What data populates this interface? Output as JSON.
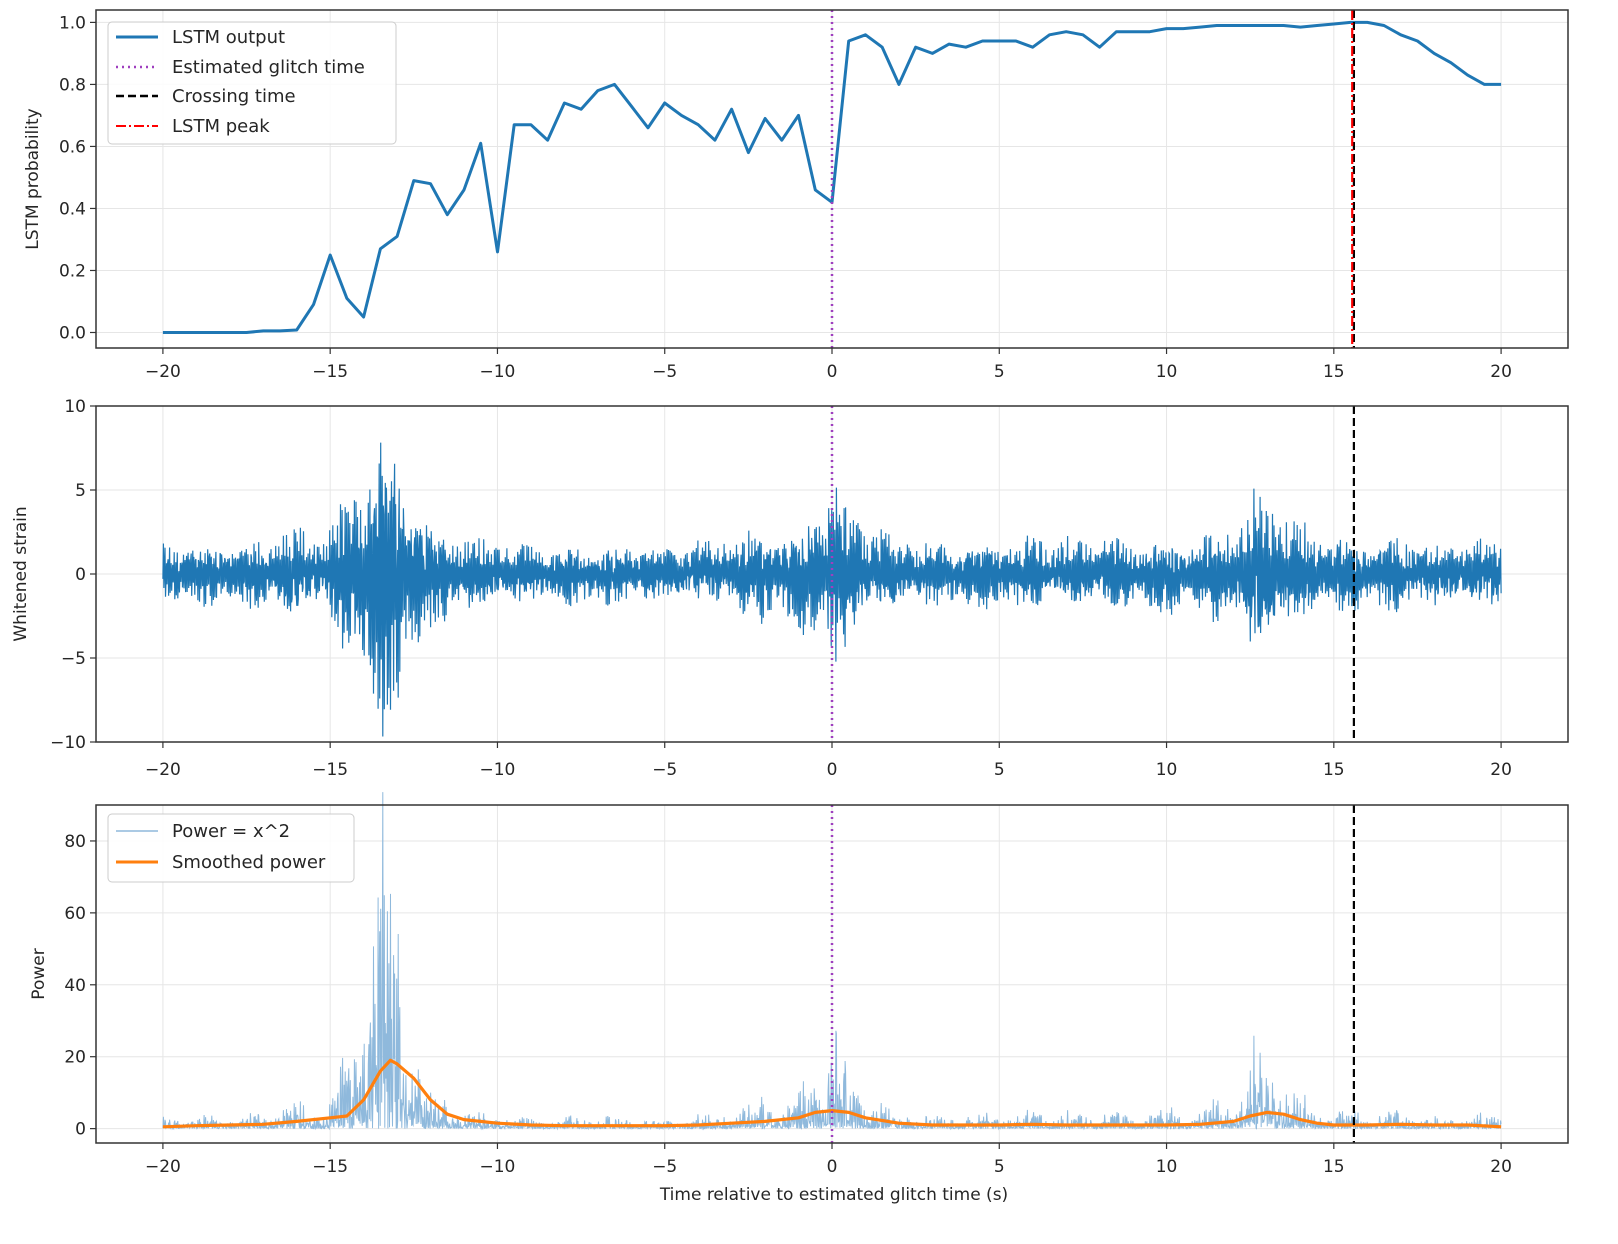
{
  "figure": {
    "xlabel": "Time relative to estimated glitch time (s)",
    "colors": {
      "lstm": "#1f77b4",
      "glitch_line": "#9f3fbf",
      "crossing_line": "#000000",
      "peak_line": "#ff0000",
      "power": "#1f77b4",
      "smoothed": "#ff7f0e",
      "grid": "#e6e6e6"
    },
    "markers": {
      "glitch_time": 0.0,
      "crossing_time": 15.6,
      "lstm_peak_time": 15.55
    }
  },
  "chart_data": [
    {
      "type": "line",
      "name": "lstm-panel",
      "ylabel": "LSTM probability",
      "xlim": [
        -22,
        22
      ],
      "ylim": [
        -0.05,
        1.04
      ],
      "xticks": [
        -20,
        -15,
        -10,
        -5,
        0,
        5,
        10,
        15,
        20
      ],
      "yticks": [
        0.0,
        0.2,
        0.4,
        0.6,
        0.8,
        1.0
      ],
      "xtick_labels": [
        "−20",
        "−15",
        "−10",
        "−5",
        "0",
        "5",
        "10",
        "15",
        "20"
      ],
      "ytick_labels": [
        "0.0",
        "0.2",
        "0.4",
        "0.6",
        "0.8",
        "1.0"
      ],
      "grid": true,
      "legend_position": "upper-left",
      "legend": [
        {
          "label": "LSTM output",
          "style": "solid",
          "color": "#1f77b4"
        },
        {
          "label": "Estimated glitch time",
          "style": "dotted",
          "color": "#9f3fbf"
        },
        {
          "label": "Crossing time",
          "style": "dashed",
          "color": "#000000"
        },
        {
          "label": "LSTM peak",
          "style": "dashdot",
          "color": "#ff0000"
        }
      ],
      "series": [
        {
          "name": "LSTM output",
          "x": [
            -20.0,
            -19.5,
            -19.0,
            -18.5,
            -18.0,
            -17.5,
            -17.0,
            -16.5,
            -16.0,
            -15.5,
            -15.0,
            -14.5,
            -14.0,
            -13.5,
            -13.0,
            -12.5,
            -12.0,
            -11.5,
            -11.0,
            -10.5,
            -10.0,
            -9.5,
            -9.0,
            -8.5,
            -8.0,
            -7.5,
            -7.0,
            -6.5,
            -6.0,
            -5.5,
            -5.0,
            -4.5,
            -4.0,
            -3.5,
            -3.0,
            -2.5,
            -2.0,
            -1.5,
            -1.0,
            -0.5,
            0.0,
            0.5,
            1.0,
            1.5,
            2.0,
            2.5,
            3.0,
            3.5,
            4.0,
            4.5,
            5.0,
            5.5,
            6.0,
            6.5,
            7.0,
            7.5,
            8.0,
            8.5,
            9.0,
            9.5,
            10.0,
            10.5,
            11.0,
            11.5,
            12.0,
            12.5,
            13.0,
            13.5,
            14.0,
            14.5,
            15.0,
            15.5,
            16.0,
            16.5,
            17.0,
            17.5,
            18.0,
            18.5,
            19.0,
            19.5,
            20.0
          ],
          "y": [
            0.0,
            0.0,
            0.0,
            0.0,
            0.0,
            0.0,
            0.005,
            0.005,
            0.008,
            0.09,
            0.25,
            0.11,
            0.05,
            0.27,
            0.31,
            0.49,
            0.48,
            0.38,
            0.46,
            0.61,
            0.26,
            0.67,
            0.67,
            0.62,
            0.74,
            0.72,
            0.78,
            0.8,
            0.73,
            0.66,
            0.74,
            0.7,
            0.67,
            0.62,
            0.72,
            0.58,
            0.69,
            0.62,
            0.7,
            0.46,
            0.42,
            0.94,
            0.96,
            0.92,
            0.8,
            0.92,
            0.9,
            0.93,
            0.92,
            0.94,
            0.94,
            0.94,
            0.92,
            0.96,
            0.97,
            0.96,
            0.92,
            0.97,
            0.97,
            0.97,
            0.98,
            0.98,
            0.985,
            0.99,
            0.99,
            0.99,
            0.99,
            0.99,
            0.985,
            0.99,
            0.995,
            1.0,
            1.0,
            0.99,
            0.96,
            0.94,
            0.9,
            0.87,
            0.83,
            0.8,
            0.8
          ],
          "color": "#1f77b4"
        }
      ],
      "vlines": [
        {
          "x": 0.0,
          "style": "dotted",
          "color": "#9f3fbf"
        },
        {
          "x": 15.6,
          "style": "dashed",
          "color": "#000000"
        },
        {
          "x": 15.55,
          "style": "dashdot",
          "color": "#ff0000"
        }
      ]
    },
    {
      "type": "line",
      "name": "strain-panel",
      "ylabel": "Whitened strain",
      "xlim": [
        -22,
        22
      ],
      "ylim": [
        -10,
        10
      ],
      "xticks": [
        -20,
        -15,
        -10,
        -5,
        0,
        5,
        10,
        15,
        20
      ],
      "yticks": [
        -10,
        -5,
        0,
        5,
        10
      ],
      "xtick_labels": [
        "−20",
        "−15",
        "−10",
        "−5",
        "0",
        "5",
        "10",
        "15",
        "20"
      ],
      "ytick_labels": [
        "−10",
        "−5",
        "0",
        "5",
        "10"
      ],
      "grid": true,
      "envelope": {
        "x": [
          -20,
          -19,
          -18,
          -17,
          -16,
          -15,
          -14.5,
          -14,
          -13.5,
          -13,
          -12.5,
          -12,
          -11,
          -10,
          -9,
          -8,
          -7,
          -6,
          -5,
          -4,
          -3,
          -2,
          -1,
          -0.5,
          0,
          0.5,
          1,
          2,
          3,
          4,
          5,
          6,
          7,
          8,
          9,
          10,
          11,
          12,
          12.5,
          13,
          13.5,
          14,
          15,
          16,
          17,
          18,
          19,
          20
        ],
        "amplitude": [
          1.8,
          2.2,
          2.0,
          2.2,
          2.8,
          3.2,
          4.8,
          7.5,
          9.2,
          8.0,
          5.5,
          3.5,
          2.4,
          2.0,
          1.8,
          1.7,
          1.8,
          1.9,
          1.8,
          2.0,
          2.4,
          2.8,
          3.0,
          4.2,
          6.0,
          4.0,
          3.0,
          2.2,
          2.0,
          2.0,
          2.1,
          2.2,
          2.2,
          2.2,
          2.3,
          2.2,
          2.4,
          3.2,
          4.8,
          5.2,
          4.2,
          3.0,
          2.2,
          2.4,
          2.2,
          2.0,
          2.1,
          2.0
        ]
      },
      "series": [
        {
          "name": "",
          "color": "#1f77b4",
          "style": "solid"
        }
      ],
      "vlines": [
        {
          "x": 0.0,
          "style": "dotted",
          "color": "#9f3fbf"
        },
        {
          "x": 15.6,
          "style": "dashed",
          "color": "#000000"
        }
      ]
    },
    {
      "type": "line",
      "name": "power-panel",
      "ylabel": "Power",
      "xlabel": "Time relative to estimated glitch time (s)",
      "xlim": [
        -22,
        22
      ],
      "ylim": [
        -4,
        90
      ],
      "xticks": [
        -20,
        -15,
        -10,
        -5,
        0,
        5,
        10,
        15,
        20
      ],
      "yticks": [
        0,
        20,
        40,
        60,
        80
      ],
      "xtick_labels": [
        "−20",
        "−15",
        "−10",
        "−5",
        "0",
        "5",
        "10",
        "15",
        "20"
      ],
      "ytick_labels": [
        "0",
        "20",
        "40",
        "60",
        "80"
      ],
      "grid": true,
      "legend_position": "upper-left",
      "legend": [
        {
          "label": "Power = x^2",
          "style": "solid-thin",
          "color": "#8fb9dc"
        },
        {
          "label": "Smoothed power",
          "style": "solid",
          "color": "#ff7f0e"
        }
      ],
      "series": [
        {
          "name": "Power = x^2",
          "color": "#8fb9dc",
          "style": "solid-thin"
        },
        {
          "name": "Smoothed power",
          "x": [
            -20,
            -19,
            -18,
            -17,
            -16,
            -15,
            -14.5,
            -14,
            -13.5,
            -13.2,
            -13,
            -12.5,
            -12,
            -11.5,
            -11,
            -10,
            -9,
            -8,
            -7,
            -6,
            -5,
            -4,
            -3,
            -2,
            -1,
            -0.5,
            0,
            0.5,
            1,
            2,
            3,
            4,
            5,
            6,
            7,
            8,
            9,
            10,
            11,
            12,
            12.5,
            13,
            13.5,
            14,
            14.5,
            15,
            16,
            17,
            18,
            19,
            20
          ],
          "y": [
            0.5,
            0.8,
            1.0,
            1.2,
            2.0,
            3.0,
            3.5,
            8.0,
            16.0,
            19.0,
            18.0,
            14.0,
            8.0,
            4.0,
            2.5,
            1.5,
            1.0,
            0.8,
            0.8,
            0.8,
            0.8,
            1.0,
            1.5,
            2.0,
            3.0,
            4.5,
            5.0,
            4.5,
            3.0,
            1.5,
            1.0,
            1.0,
            1.0,
            1.2,
            1.0,
            1.0,
            1.0,
            1.0,
            1.2,
            2.0,
            3.5,
            4.5,
            4.0,
            2.5,
            1.5,
            1.0,
            1.0,
            1.2,
            1.0,
            1.0,
            0.5
          ],
          "color": "#ff7f0e"
        }
      ],
      "vlines": [
        {
          "x": 0.0,
          "style": "dotted",
          "color": "#9f3fbf"
        },
        {
          "x": 15.6,
          "style": "dashed",
          "color": "#000000"
        }
      ]
    }
  ]
}
